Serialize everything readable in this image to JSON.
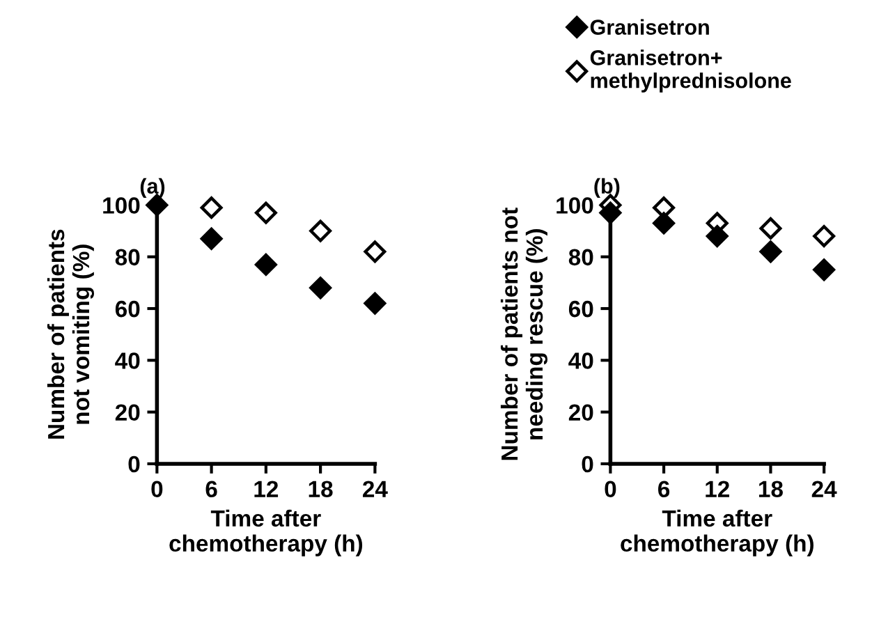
{
  "chart_data": [
    {
      "type": "scatter",
      "title": "(a)",
      "xlabel": "Time after\nchemotherapy (h)",
      "ylabel": "Number of patients\nnot vomiting (%)",
      "x": [
        0,
        6,
        12,
        18,
        24
      ],
      "xlim": [
        0,
        24
      ],
      "xticks": [
        0,
        6,
        12,
        18,
        24
      ],
      "ylim": [
        0,
        100
      ],
      "yticks": [
        0,
        20,
        40,
        60,
        80,
        100
      ],
      "marker": "diamond",
      "grid": false,
      "legend": "top right",
      "series": [
        {
          "name": "Granisetron",
          "color": "#000000",
          "values": [
            100,
            87,
            77,
            68,
            62
          ]
        },
        {
          "name": "Granisetron+\nmethylprednisolone",
          "color": "#ffffff",
          "values": [
            null,
            99,
            97,
            90,
            82
          ]
        }
      ]
    },
    {
      "type": "scatter",
      "title": "(b)",
      "xlabel": "Time after\nchemotherapy (h)",
      "ylabel": "Number of patients not\nneeding rescue (%)",
      "x": [
        0,
        6,
        12,
        18,
        24
      ],
      "xlim": [
        0,
        24
      ],
      "xticks": [
        0,
        6,
        12,
        18,
        24
      ],
      "ylim": [
        0,
        100
      ],
      "yticks": [
        0,
        20,
        40,
        60,
        80,
        100
      ],
      "marker": "diamond",
      "grid": false,
      "series": [
        {
          "color": "#000000",
          "values": [
            97,
            93,
            88,
            82,
            75
          ]
        },
        {
          "color": "#ffffff",
          "values": [
            100,
            99,
            93,
            91,
            88
          ]
        }
      ]
    }
  ]
}
